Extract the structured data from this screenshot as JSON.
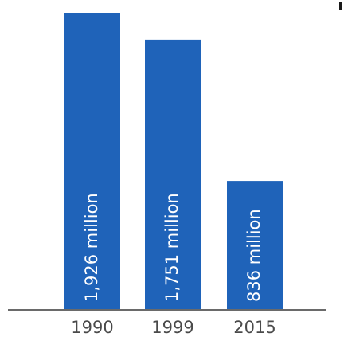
{
  "chart_data": {
    "type": "bar",
    "categories": [
      "1990",
      "1999",
      "2015"
    ],
    "values": [
      1926,
      1751,
      836
    ],
    "unit": "million",
    "data_labels": [
      "1,926 million",
      "1,751 million",
      "836 million"
    ],
    "title": "",
    "xlabel": "",
    "ylabel": "",
    "ylim": [
      0,
      1926
    ],
    "grid": false,
    "legend": "none",
    "colors": {
      "bar": "#1f63b9",
      "bar_label": "#ffffff",
      "tick_label": "#4a4a4a",
      "axis": "#6a6a6a"
    }
  }
}
